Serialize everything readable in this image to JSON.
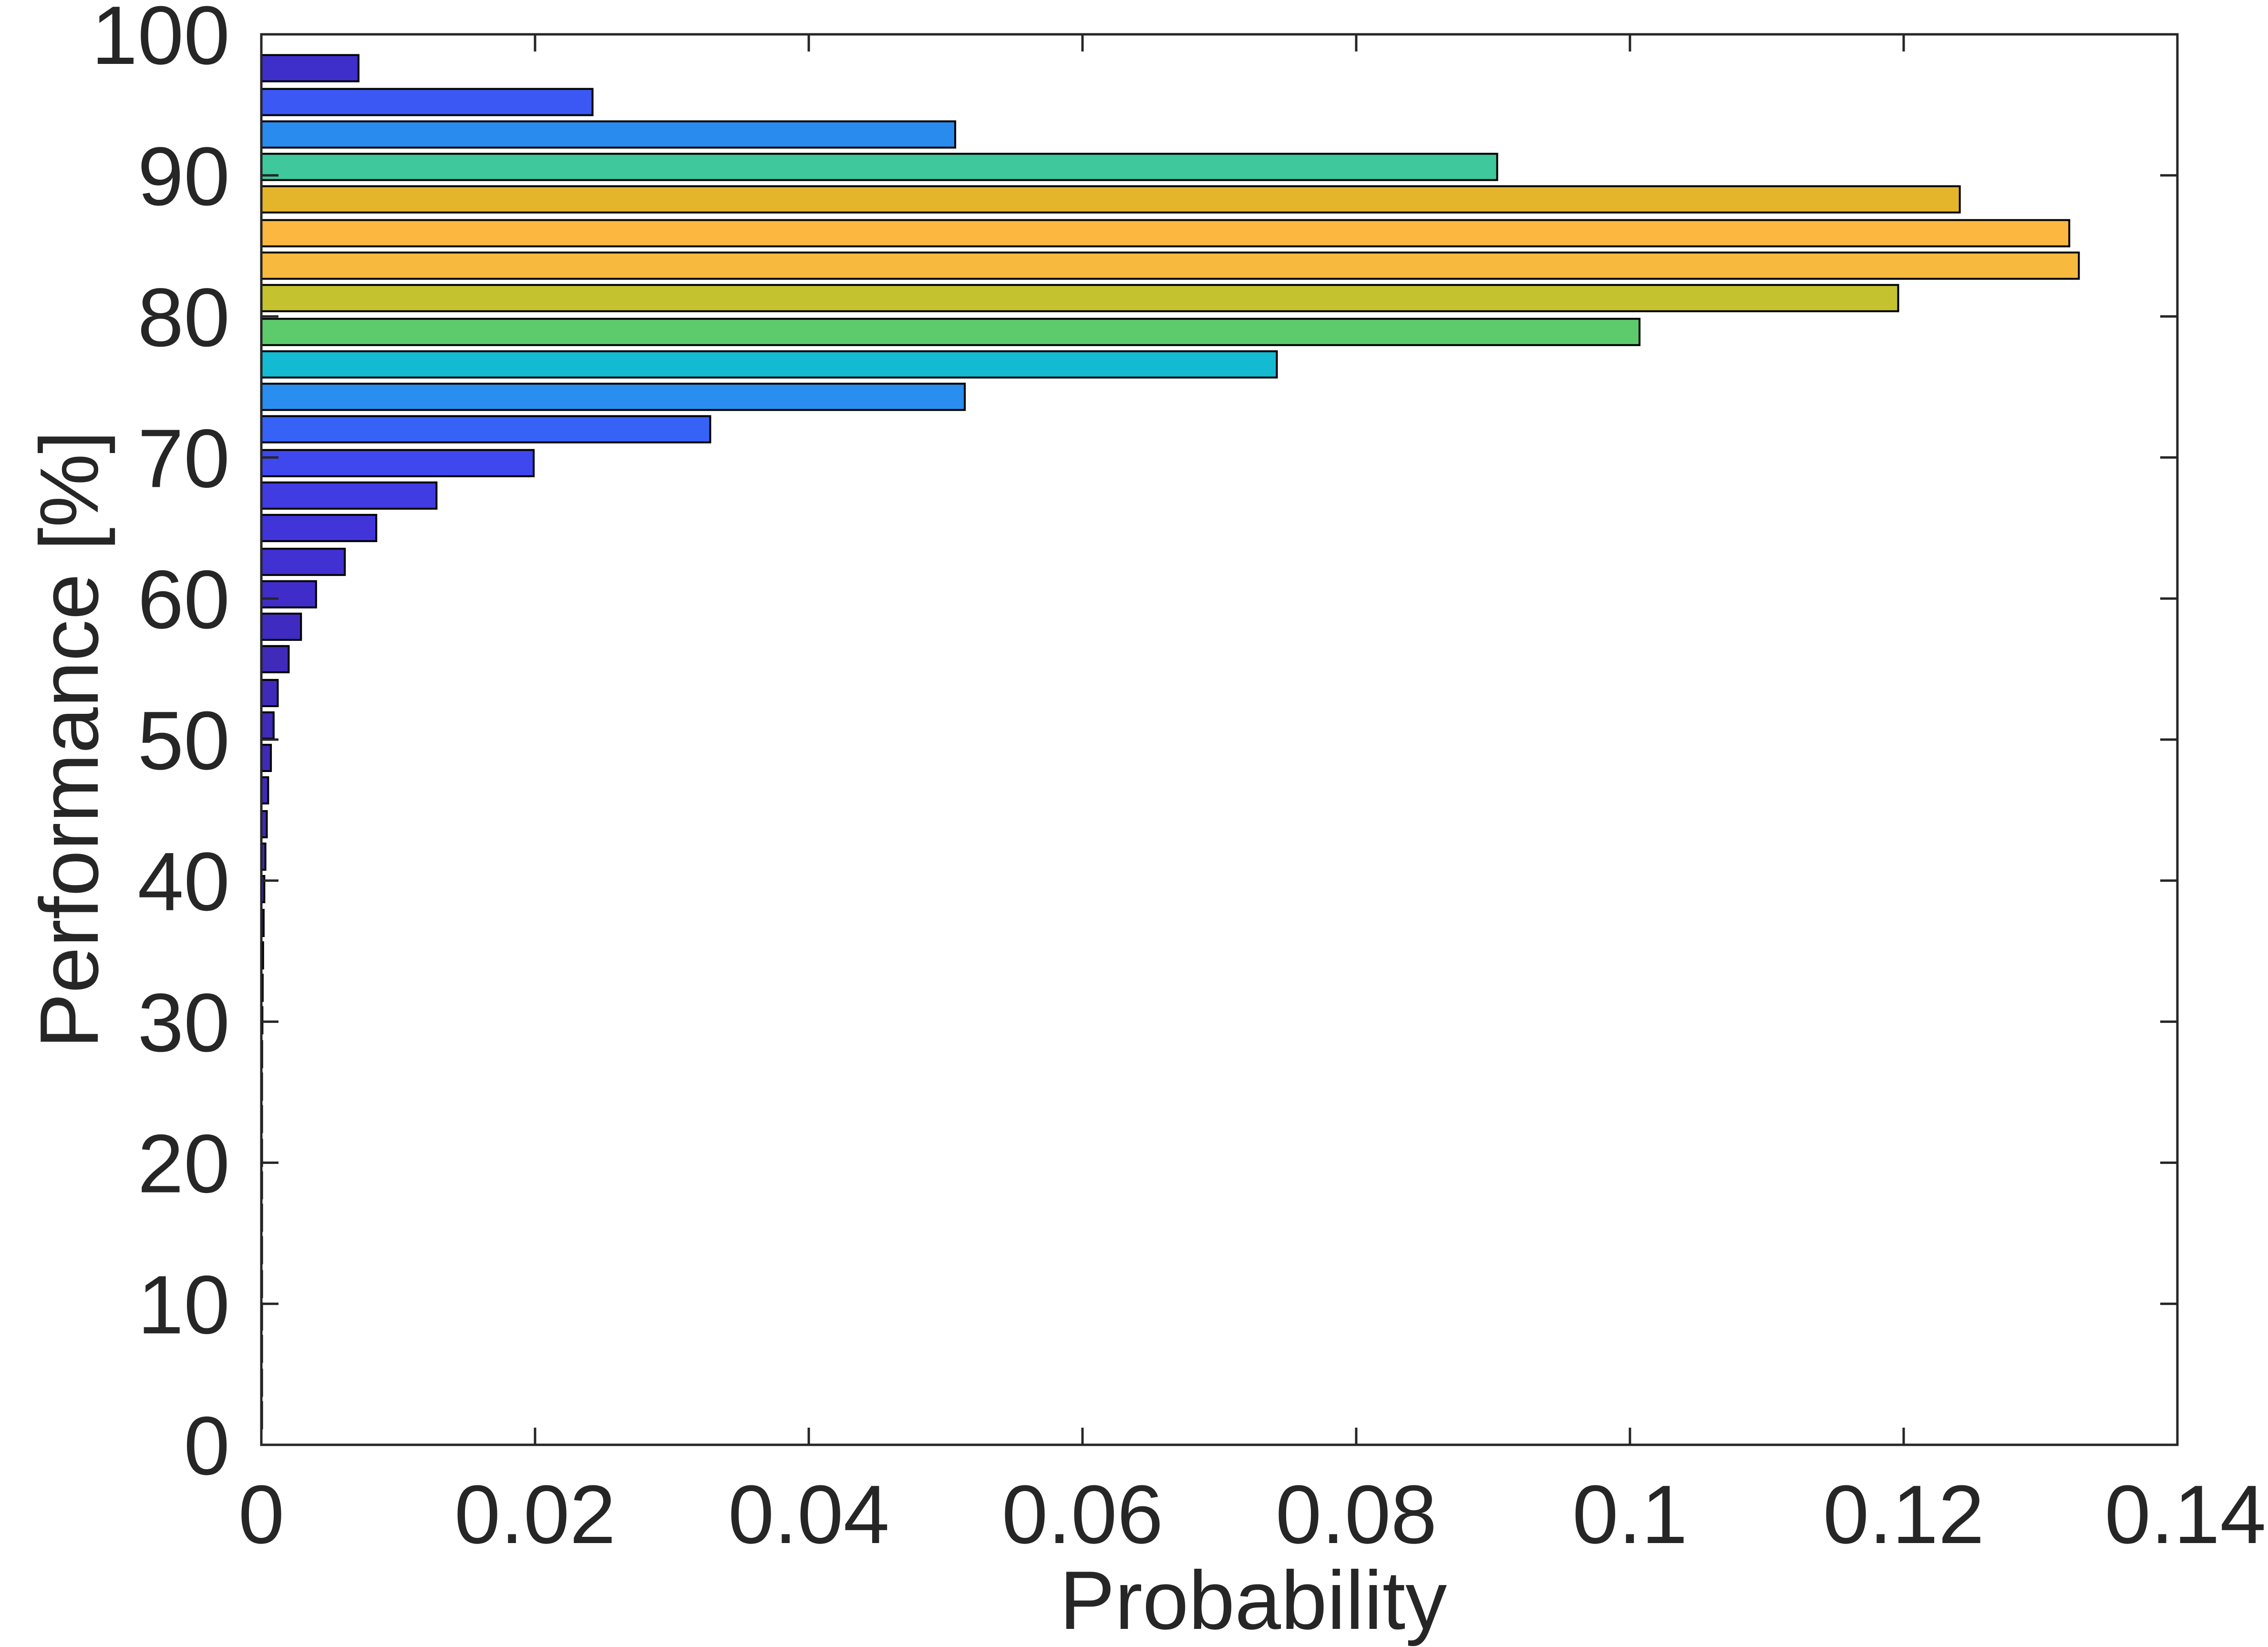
{
  "chart_data": {
    "type": "bar",
    "orientation": "horizontal",
    "title": "",
    "xlabel": "Probability",
    "ylabel": "Performance [%]",
    "xlim": [
      0,
      0.14
    ],
    "ylim": [
      0,
      100
    ],
    "xticks": [
      0,
      0.02,
      0.04,
      0.06,
      0.08,
      0.1,
      0.12,
      0.14
    ],
    "xtick_labels": [
      "0",
      "0.02",
      "0.04",
      "0.06",
      "0.08",
      "0.1",
      "0.12",
      "0.14"
    ],
    "yticks": [
      0,
      10,
      20,
      30,
      40,
      50,
      60,
      70,
      80,
      90,
      100
    ],
    "ytick_labels": [
      "0",
      "10",
      "20",
      "30",
      "40",
      "50",
      "60",
      "70",
      "80",
      "90",
      "100"
    ],
    "grid": false,
    "box": true,
    "bin_width": 2.33,
    "categories": [
      2.1,
      4.4,
      6.8,
      9.1,
      11.4,
      13.8,
      16.1,
      18.4,
      20.7,
      23.1,
      25.4,
      27.7,
      30.1,
      32.4,
      34.7,
      37.0,
      39.4,
      41.7,
      44.0,
      46.4,
      48.7,
      51.0,
      53.3,
      55.7,
      58.0,
      60.3,
      62.6,
      65.0,
      67.3,
      69.6,
      72.0,
      74.3,
      76.6,
      78.9,
      81.3,
      83.6,
      85.9,
      88.3,
      90.6,
      92.9,
      95.2,
      97.6
    ],
    "values": [
      2e-05,
      2e-05,
      2e-05,
      2e-05,
      2e-05,
      2e-05,
      2e-05,
      3e-05,
      3e-05,
      4e-05,
      5e-05,
      6e-05,
      8e-05,
      0.0001,
      0.00013,
      0.00017,
      0.00022,
      0.0003,
      0.0004,
      0.0005,
      0.0007,
      0.0009,
      0.0012,
      0.002,
      0.0029,
      0.004,
      0.0061,
      0.0084,
      0.0128,
      0.0199,
      0.0328,
      0.0514,
      0.0742,
      0.1007,
      0.1196,
      0.1328,
      0.1321,
      0.1241,
      0.0903,
      0.0507,
      0.0242,
      0.0071
    ],
    "colors": [
      "#3f2ab9",
      "#3f2ab9",
      "#3f2ab9",
      "#3f2ab9",
      "#3f2ab9",
      "#3f2ab9",
      "#3f2ab9",
      "#3f2ab9",
      "#3f2ab9",
      "#3f2ab9",
      "#3f2ab9",
      "#3f2ab9",
      "#3f2ab9",
      "#3f2ab9",
      "#3f2ab9",
      "#3f2ab9",
      "#3f2ab9",
      "#3f2ab9",
      "#3f2ab9",
      "#3f2ab9",
      "#3f2ab9",
      "#3f2ab9",
      "#3f2ab9",
      "#3f2ab9",
      "#3f2bbf",
      "#402dc9",
      "#4130d2",
      "#4135da",
      "#413be2",
      "#3f48ee",
      "#3662f6",
      "#2a8df0",
      "#14b9d2",
      "#5dcb6c",
      "#c4c32f",
      "#f8ba3e",
      "#fbb73f",
      "#e4b52b",
      "#3ec89b",
      "#2a8bee",
      "#3b58f4",
      "#3e2fcb"
    ],
    "bar_edge_color": "#000000"
  }
}
